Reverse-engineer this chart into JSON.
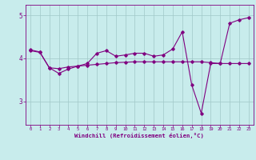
{
  "xlabel": "Windchill (Refroidissement éolien,°C)",
  "background_color": "#c8ecec",
  "line_color": "#800080",
  "grid_color": "#a0c8c8",
  "x_ticks": [
    0,
    1,
    2,
    3,
    4,
    5,
    6,
    7,
    8,
    9,
    10,
    11,
    12,
    13,
    14,
    15,
    16,
    17,
    18,
    19,
    20,
    21,
    22,
    23
  ],
  "y_ticks": [
    3,
    4,
    5
  ],
  "ylim": [
    2.45,
    5.25
  ],
  "xlim": [
    -0.5,
    23.5
  ],
  "line1_x": [
    0,
    1,
    2,
    3,
    4,
    5,
    6,
    7,
    8,
    9,
    10,
    11,
    12,
    13,
    14,
    15,
    16,
    17,
    18,
    19,
    20,
    21,
    22,
    23
  ],
  "line1_y": [
    4.2,
    4.15,
    3.78,
    3.65,
    3.75,
    3.82,
    3.88,
    4.12,
    4.18,
    4.05,
    4.08,
    4.12,
    4.12,
    4.05,
    4.08,
    4.22,
    4.62,
    3.38,
    2.72,
    3.88,
    3.88,
    4.82,
    4.9,
    4.95
  ],
  "line2_x": [
    0,
    1,
    2,
    3,
    4,
    5,
    6,
    7,
    8,
    9,
    10,
    11,
    12,
    13,
    14,
    15,
    16,
    17,
    18,
    19,
    20,
    21,
    22,
    23
  ],
  "line2_y": [
    4.18,
    4.14,
    3.78,
    3.76,
    3.8,
    3.82,
    3.84,
    3.86,
    3.88,
    3.9,
    3.91,
    3.92,
    3.92,
    3.92,
    3.92,
    3.92,
    3.92,
    3.92,
    3.92,
    3.9,
    3.88,
    3.88,
    3.88,
    3.88
  ]
}
